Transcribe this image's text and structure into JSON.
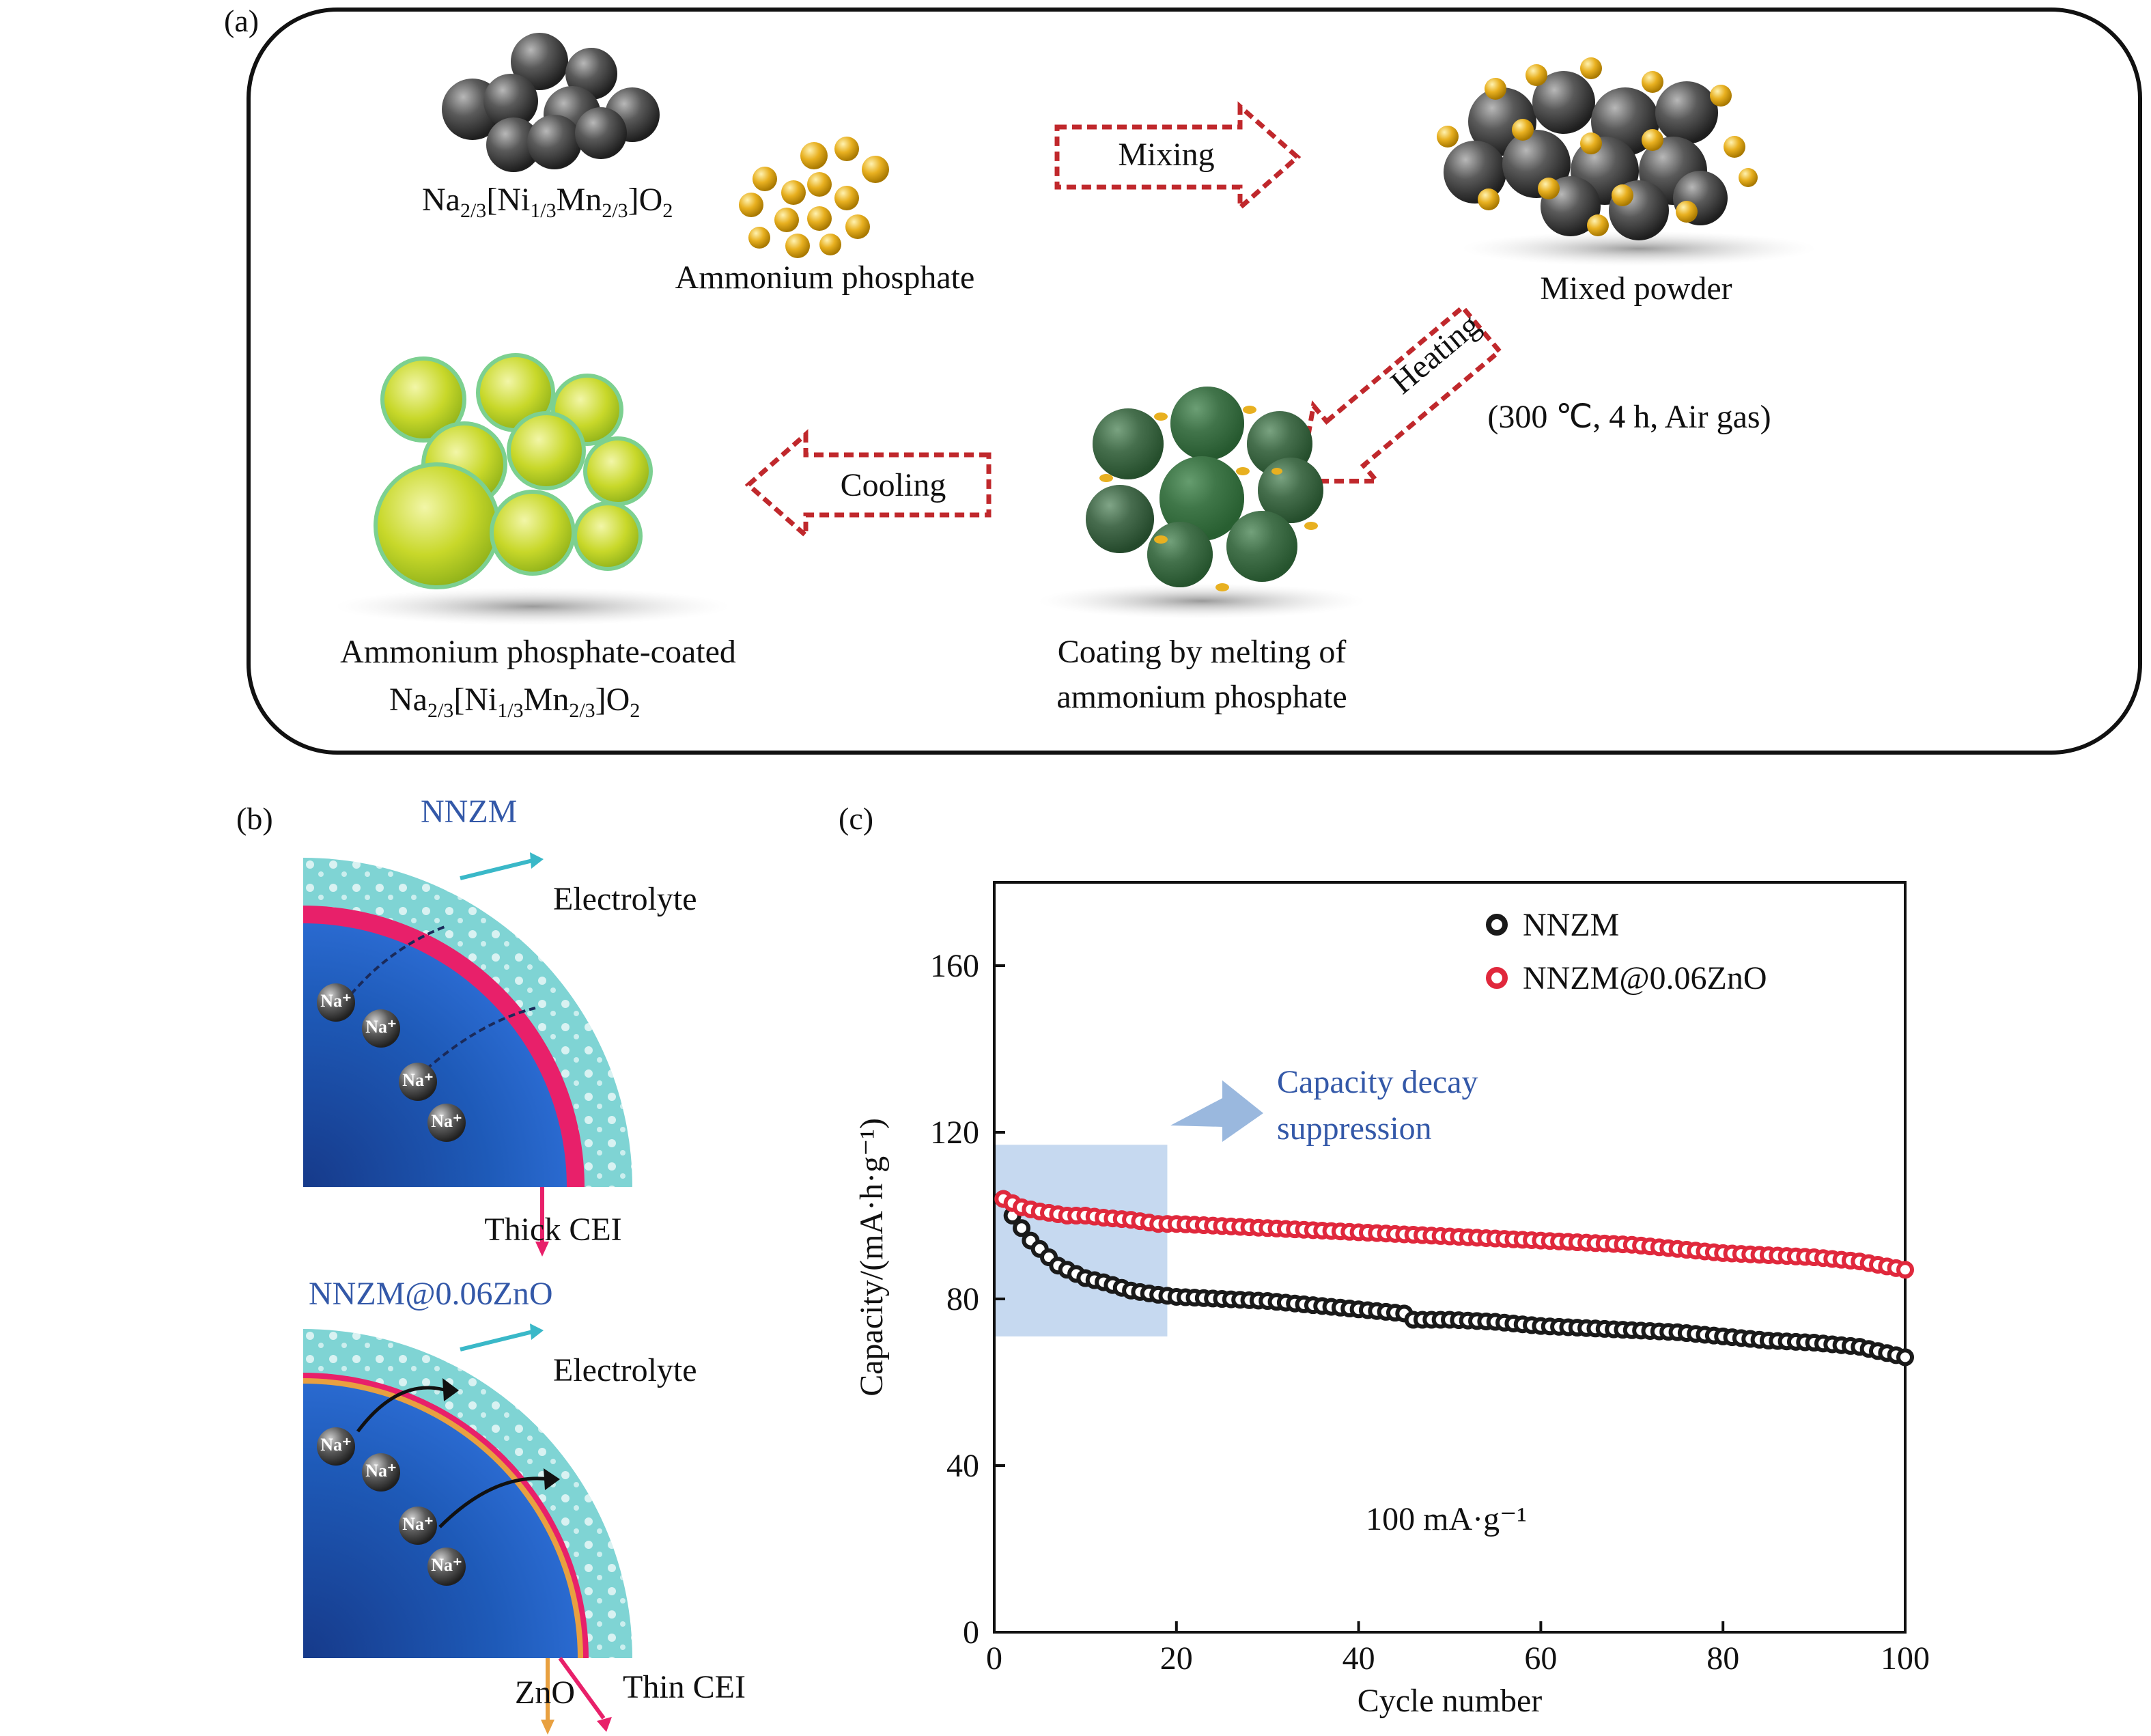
{
  "panel_a": {
    "letter": "(a)",
    "np_material": {
      "base": "Na",
      "s1": "2/3",
      "m1": "[Ni",
      "s2": "1/3",
      "m2": "Mn",
      "s3": "2/3",
      "m3": "]O",
      "s4": "2"
    },
    "ammonium_label": "Ammonium phosphate",
    "mixing_label": "Mixing",
    "mixed_powder_label": "Mixed powder",
    "heating_label": "Heating",
    "heating_conditions": "(300 ℃, 4 h, Air gas)",
    "coating_label_1": "Coating by melting of",
    "coating_label_2": "ammonium phosphate",
    "cooling_label": "Cooling",
    "coated_label_1": "Ammonium phosphate-coated",
    "coated_material": {
      "base": "Na",
      "s1": "2/3",
      "m1": "[Ni",
      "s2": "1/3",
      "m2": "Mn",
      "s3": "2/3",
      "m3": "]O",
      "s4": "2"
    },
    "colors": {
      "gray_particle": "#4a4a4a",
      "yellow_particle": "#e8b020",
      "green_coating": "#b8d020",
      "arrow_red": "#c0282c"
    }
  },
  "panel_b": {
    "letter": "(b)",
    "top_title": "NNZM",
    "top_electrolyte": "Electrolyte",
    "top_cei": "Thick CEI",
    "bottom_title": "NNZM@0.06ZnO",
    "bottom_electrolyte": "Electrolyte",
    "bottom_cei": "Thin CEI",
    "zno_label": "ZnO",
    "ion_label": "Na⁺",
    "colors": {
      "title_blue": "#3358a8",
      "core_blue": "#1e4ea8",
      "cei_pink": "#e8206a",
      "electrolyte_cyan": "#7fd4d4"
    }
  },
  "panel_c": {
    "letter": "(c)"
  },
  "chart_data": {
    "type": "scatter",
    "xlabel": "Cycle number",
    "ylabel": "Capacity/(mA·h·g⁻¹)",
    "xlim": [
      0,
      100
    ],
    "ylim": [
      0,
      180
    ],
    "xticks": [
      0,
      20,
      40,
      60,
      80,
      100
    ],
    "yticks": [
      0,
      40,
      80,
      120,
      160
    ],
    "annotation": "Capacity decay\nsuppression",
    "annotation_line1": "Capacity decay",
    "annotation_line2": "suppression",
    "current_density": "100 mA·g⁻¹",
    "highlight_region": {
      "x": [
        0,
        19
      ],
      "y": [
        71,
        117
      ]
    },
    "legend_position": "top-right",
    "series": [
      {
        "name": "NNZM",
        "color": "#1a1a1a",
        "x": [
          1,
          2,
          3,
          4,
          5,
          6,
          7,
          8,
          10,
          12,
          15,
          18,
          20,
          25,
          30,
          35,
          40,
          45,
          46,
          50,
          55,
          60,
          65,
          70,
          75,
          80,
          85,
          90,
          95,
          100
        ],
        "y": [
          104,
          100,
          97,
          94,
          92,
          90,
          88,
          87,
          85,
          84,
          82,
          81,
          80.5,
          80,
          79.5,
          78.5,
          77.5,
          76.5,
          75,
          75,
          74.5,
          73.5,
          73,
          72.5,
          72,
          71,
          70,
          69.5,
          68.5,
          66
        ]
      },
      {
        "name": "NNZM@0.06ZnO",
        "color": "#e0283c",
        "x": [
          1,
          3,
          5,
          8,
          10,
          12,
          15,
          18,
          20,
          25,
          30,
          35,
          40,
          45,
          50,
          55,
          60,
          65,
          70,
          75,
          80,
          85,
          90,
          95,
          100
        ],
        "y": [
          104,
          102,
          101,
          100,
          100,
          99.5,
          99,
          98,
          98,
          97.5,
          97,
          96.5,
          96,
          95.5,
          95,
          94.5,
          94,
          93.5,
          93,
          92,
          91,
          90.5,
          90,
          89,
          87
        ]
      }
    ]
  }
}
